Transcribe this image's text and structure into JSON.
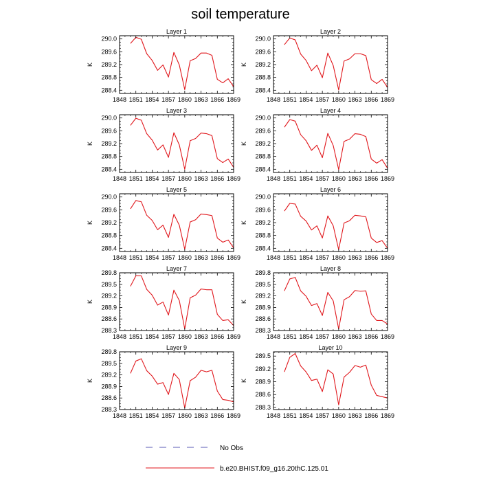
{
  "chart_data": {
    "type": "line",
    "title": "soil temperature",
    "xlim": [
      1848,
      1869
    ],
    "x_ticks": [
      1848,
      1851,
      1854,
      1857,
      1860,
      1863,
      1866,
      1869
    ],
    "x": [
      1850,
      1851,
      1852,
      1853,
      1854,
      1855,
      1856,
      1857,
      1858,
      1859,
      1860,
      1861,
      1862,
      1863,
      1864,
      1865,
      1866,
      1867,
      1868,
      1869
    ],
    "legend": {
      "placement": "bottom",
      "entries": [
        {
          "label": "No Obs",
          "color": "#5a5ab4",
          "dash": true
        },
        {
          "label": "b.e20.BHIST.f09_g16.20thC.125.01",
          "color": "#e0161b",
          "dash": false
        }
      ]
    },
    "panels": [
      {
        "title": "Layer 1",
        "ylabel": "K",
        "ylim": [
          288.3,
          290.1
        ],
        "y_ticks": [
          "288.4",
          "288.8",
          "289.2",
          "289.6",
          "290.0"
        ],
        "series": [
          {
            "name": "b.e20.BHIST.f09_g16.20thC.125.01",
            "color": "#e0161b",
            "values": [
              289.86,
              290.05,
              289.99,
              289.54,
              289.33,
              289.02,
              289.19,
              288.81,
              289.58,
              289.19,
              288.42,
              289.32,
              289.39,
              289.56,
              289.56,
              289.49,
              288.74,
              288.63,
              288.76,
              288.51
            ]
          }
        ]
      },
      {
        "title": "Layer 2",
        "ylabel": "K",
        "ylim": [
          288.3,
          290.1
        ],
        "y_ticks": [
          "288.4",
          "288.8",
          "289.2",
          "289.6",
          "290.0"
        ],
        "series": [
          {
            "name": "b.e20.BHIST.f09_g16.20thC.125.01",
            "color": "#e0161b",
            "values": [
              289.82,
              290.03,
              289.97,
              289.53,
              289.33,
              289.01,
              289.18,
              288.79,
              289.56,
              289.17,
              288.41,
              289.31,
              289.38,
              289.54,
              289.54,
              289.48,
              288.73,
              288.61,
              288.74,
              288.49
            ]
          }
        ]
      },
      {
        "title": "Layer 3",
        "ylabel": "K",
        "ylim": [
          288.3,
          290.1
        ],
        "y_ticks": [
          "288.4",
          "288.8",
          "289.2",
          "289.6",
          "290.0"
        ],
        "series": [
          {
            "name": "b.e20.BHIST.f09_g16.20thC.125.01",
            "color": "#e0161b",
            "values": [
              289.77,
              289.99,
              289.93,
              289.51,
              289.31,
              289.0,
              289.16,
              288.77,
              289.54,
              289.16,
              288.4,
              289.29,
              289.36,
              289.53,
              289.51,
              289.45,
              288.73,
              288.61,
              288.72,
              288.46
            ]
          }
        ]
      },
      {
        "title": "Layer 4",
        "ylabel": "K",
        "ylim": [
          288.3,
          290.1
        ],
        "y_ticks": [
          "288.4",
          "288.8",
          "289.2",
          "289.6",
          "290.0"
        ],
        "series": [
          {
            "name": "b.e20.BHIST.f09_g16.20thC.125.01",
            "color": "#e0161b",
            "values": [
              289.71,
              289.95,
              289.9,
              289.48,
              289.29,
              288.99,
              289.15,
              288.76,
              289.52,
              289.14,
              288.39,
              289.27,
              289.34,
              289.51,
              289.49,
              289.42,
              288.72,
              288.59,
              288.7,
              288.43
            ]
          }
        ]
      },
      {
        "title": "Layer 5",
        "ylabel": "K",
        "ylim": [
          288.3,
          290.1
        ],
        "y_ticks": [
          "288.4",
          "288.8",
          "289.2",
          "289.6",
          "290.0"
        ],
        "series": [
          {
            "name": "b.e20.BHIST.f09_g16.20thC.125.01",
            "color": "#e0161b",
            "values": [
              289.63,
              289.89,
              289.85,
              289.43,
              289.27,
              288.98,
              289.12,
              288.74,
              289.46,
              289.12,
              288.37,
              289.22,
              289.29,
              289.47,
              289.45,
              289.42,
              288.72,
              288.59,
              288.66,
              288.41
            ]
          }
        ]
      },
      {
        "title": "Layer 6",
        "ylabel": "K",
        "ylim": [
          288.3,
          290.1
        ],
        "y_ticks": [
          "288.4",
          "288.8",
          "289.2",
          "289.6",
          "290.0"
        ],
        "series": [
          {
            "name": "b.e20.BHIST.f09_g16.20thC.125.01",
            "color": "#e0161b",
            "values": [
              289.56,
              289.8,
              289.78,
              289.4,
              289.25,
              288.97,
              289.1,
              288.72,
              289.41,
              289.1,
              288.36,
              289.19,
              289.26,
              289.43,
              289.41,
              289.38,
              288.72,
              288.58,
              288.64,
              288.4
            ]
          }
        ]
      },
      {
        "title": "Layer 7",
        "ylabel": "K",
        "ylim": [
          288.3,
          289.8
        ],
        "y_ticks": [
          "288.3",
          "288.6",
          "288.9",
          "289.2",
          "289.5",
          "289.8"
        ],
        "series": [
          {
            "name": "b.e20.BHIST.f09_g16.20thC.125.01",
            "color": "#e0161b",
            "values": [
              289.45,
              289.72,
              289.72,
              289.37,
              289.22,
              288.96,
              289.04,
              288.7,
              289.35,
              289.08,
              288.34,
              289.15,
              289.22,
              289.38,
              289.36,
              289.36,
              288.72,
              288.56,
              288.58,
              288.43
            ]
          }
        ]
      },
      {
        "title": "Layer 8",
        "ylabel": "K",
        "ylim": [
          288.3,
          289.8
        ],
        "y_ticks": [
          "288.3",
          "288.6",
          "288.9",
          "289.2",
          "289.5",
          "289.8"
        ],
        "series": [
          {
            "name": "b.e20.BHIST.f09_g16.20thC.125.01",
            "color": "#e0161b",
            "values": [
              289.33,
              289.64,
              289.68,
              289.33,
              289.19,
              288.95,
              289.0,
              288.69,
              289.29,
              289.07,
              288.34,
              289.1,
              289.18,
              289.34,
              289.32,
              289.33,
              288.73,
              288.56,
              288.56,
              288.47
            ]
          }
        ]
      },
      {
        "title": "Layer 9",
        "ylabel": "K",
        "ylim": [
          288.3,
          289.8
        ],
        "y_ticks": [
          "288.3",
          "288.6",
          "288.9",
          "289.2",
          "289.5",
          "289.8"
        ],
        "series": [
          {
            "name": "b.e20.BHIST.f09_g16.20thC.125.01",
            "color": "#e0161b",
            "values": [
              289.24,
              289.56,
              289.62,
              289.31,
              289.17,
              288.96,
              289.0,
              288.69,
              289.24,
              289.08,
              288.34,
              289.05,
              289.14,
              289.32,
              289.28,
              289.32,
              288.78,
              288.56,
              288.54,
              288.5
            ]
          }
        ]
      },
      {
        "title": "Layer 10",
        "ylabel": "K",
        "ylim": [
          288.25,
          289.6
        ],
        "y_ticks": [
          "288.3",
          "288.6",
          "288.9",
          "289.2",
          "289.5"
        ],
        "series": [
          {
            "name": "b.e20.BHIST.f09_g16.20thC.125.01",
            "color": "#e0161b",
            "values": [
              289.13,
              289.47,
              289.56,
              289.27,
              289.13,
              288.93,
              288.96,
              288.67,
              289.18,
              289.08,
              288.36,
              289.01,
              289.12,
              289.28,
              289.24,
              289.29,
              288.82,
              288.58,
              288.55,
              288.52
            ]
          }
        ]
      }
    ]
  }
}
